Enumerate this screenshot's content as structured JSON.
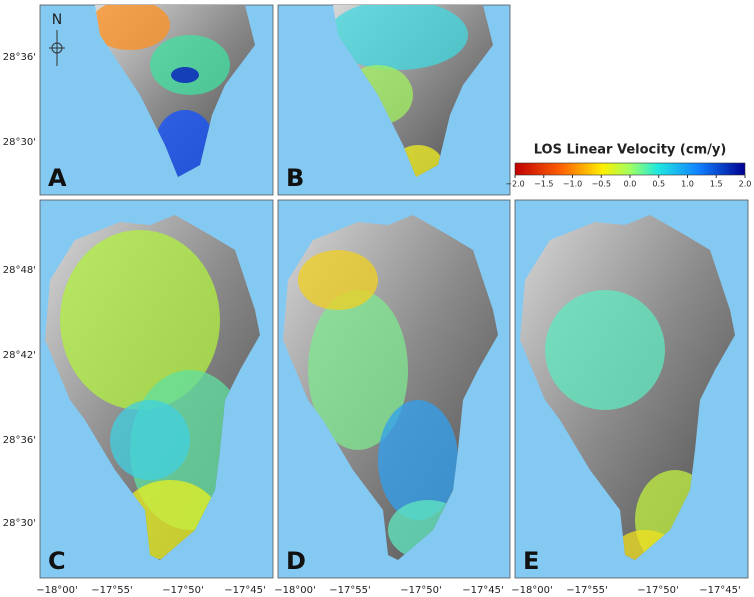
{
  "panels": [
    {
      "label": "A"
    },
    {
      "label": "B"
    },
    {
      "label": "C"
    },
    {
      "label": "D"
    },
    {
      "label": "E"
    }
  ],
  "north_label": "N",
  "colorbar": {
    "title": "LOS Linear Velocity (cm/y)",
    "ticks": [
      {
        "value": -2,
        "label": "−2.0"
      },
      {
        "value": -1.5,
        "label": "−1.5"
      },
      {
        "value": -1,
        "label": "−1.0"
      },
      {
        "value": -0.5,
        "label": "−0.5"
      },
      {
        "value": 0,
        "label": "0.0"
      },
      {
        "value": 0.5,
        "label": "0.5"
      },
      {
        "value": 1,
        "label": "1.0"
      },
      {
        "value": 1.5,
        "label": "1.5"
      },
      {
        "value": 2,
        "label": "2.0"
      }
    ]
  },
  "latitude_labels": {
    "top_row": [
      "28°36'",
      "28°30'"
    ],
    "bottom_row": [
      "28°48'",
      "28°42'",
      "28°36'",
      "28°30'"
    ]
  },
  "longitude_labels": [
    "−18°00'",
    "−17°55'",
    "−17°50'",
    "−17°45'"
  ]
}
